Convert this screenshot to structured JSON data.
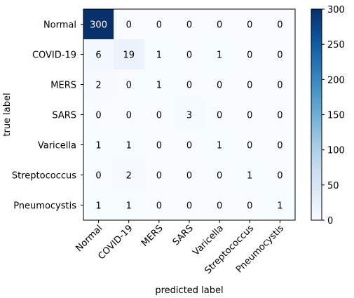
{
  "chart_data": {
    "type": "heatmap",
    "xlabel": "predicted label",
    "ylabel": "true label",
    "x_categories": [
      "Normal",
      "COVID-19",
      "MERS",
      "SARS",
      "Varicella",
      "Streptococcus",
      "Pneumocystis"
    ],
    "y_categories": [
      "Normal",
      "COVID-19",
      "MERS",
      "SARS",
      "Varicella",
      "Streptococcus",
      "Pneumocystis"
    ],
    "values": [
      [
        300,
        0,
        0,
        0,
        0,
        0,
        0
      ],
      [
        6,
        19,
        1,
        0,
        1,
        0,
        0
      ],
      [
        2,
        0,
        1,
        0,
        0,
        0,
        0
      ],
      [
        0,
        0,
        0,
        3,
        0,
        0,
        0
      ],
      [
        1,
        1,
        0,
        0,
        1,
        0,
        0
      ],
      [
        0,
        2,
        0,
        0,
        0,
        1,
        0
      ],
      [
        1,
        1,
        0,
        0,
        0,
        0,
        1
      ]
    ],
    "colorbar": {
      "range": [
        0,
        300
      ],
      "ticks": [
        0,
        50,
        100,
        150,
        200,
        250,
        300
      ]
    },
    "colormap": "Blues",
    "colors": {
      "low": "#f7fbff",
      "high": "#08306b"
    },
    "grid": false,
    "colorbar_position": "right"
  }
}
